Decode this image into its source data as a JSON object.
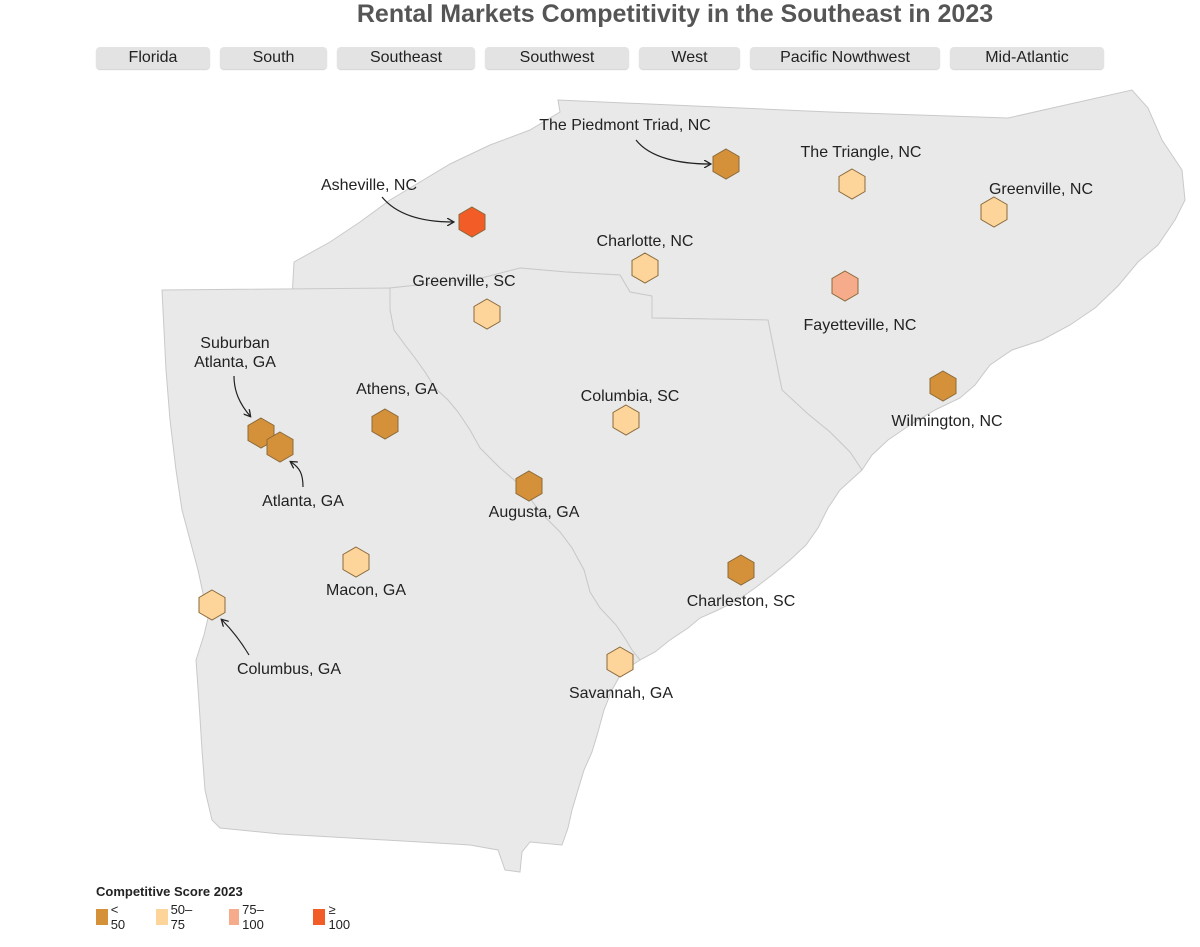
{
  "title": "Rental Markets Competitivity in the Southeast in 2023",
  "tabs": [
    {
      "label": "Florida"
    },
    {
      "label": "South"
    },
    {
      "label": "Southeast"
    },
    {
      "label": "Southwest"
    },
    {
      "label": "West"
    },
    {
      "label": "Pacific Nowthwest"
    },
    {
      "label": "Mid-Atlantic"
    }
  ],
  "colors": {
    "land": "#e9e9e9",
    "border": "#c9c9c9",
    "lt50": "#d4913a",
    "50to75": "#fdd49a",
    "75to100": "#f6ab8b",
    "gte100": "#f25c27",
    "hex_stroke": "#8a6a3a"
  },
  "legend": {
    "title": "Competitive Score 2023",
    "items": [
      {
        "label": "< 50",
        "category": "lt50",
        "color": "#d4913a"
      },
      {
        "label": "50–75",
        "category": "50to75",
        "color": "#fdd49a"
      },
      {
        "label": "75–100",
        "category": "75to100",
        "color": "#f6ab8b"
      },
      {
        "label": "≥ 100",
        "category": "gte100",
        "color": "#f25c27"
      }
    ]
  },
  "cities": [
    {
      "name": "The Piedmont Triad, NC",
      "category": "lt50"
    },
    {
      "name": "The Triangle, NC",
      "category": "50to75"
    },
    {
      "name": "Greenville, NC",
      "category": "50to75"
    },
    {
      "name": "Asheville, NC",
      "category": "gte100"
    },
    {
      "name": "Charlotte, NC",
      "category": "50to75"
    },
    {
      "name": "Fayetteville, NC",
      "category": "75to100"
    },
    {
      "name": "Greenville, SC",
      "category": "50to75"
    },
    {
      "name": "Suburban\nAtlanta, GA",
      "category": "lt50"
    },
    {
      "name": "Atlanta, GA",
      "category": "lt50"
    },
    {
      "name": "Athens, GA",
      "category": "lt50"
    },
    {
      "name": "Columbia, SC",
      "category": "50to75"
    },
    {
      "name": "Wilmington, NC",
      "category": "lt50"
    },
    {
      "name": "Augusta, GA",
      "category": "lt50"
    },
    {
      "name": "Macon, GA",
      "category": "50to75"
    },
    {
      "name": "Columbus, GA",
      "category": "50to75"
    },
    {
      "name": "Charleston, SC",
      "category": "lt50"
    },
    {
      "name": "Savannah, GA",
      "category": "50to75"
    }
  ]
}
